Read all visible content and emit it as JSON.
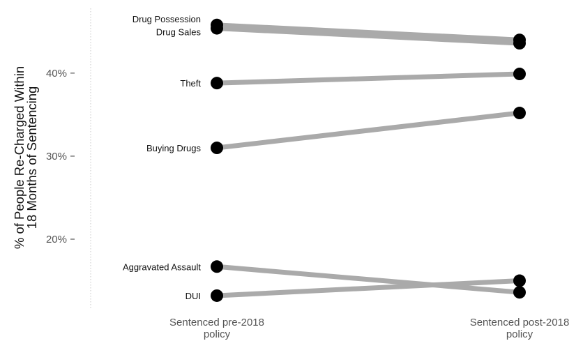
{
  "chart_data": {
    "type": "line",
    "title": "",
    "xlabel": "",
    "ylabel": [
      "% of People Re-Charged Within",
      "18 Months of Sentencing"
    ],
    "categories": [
      [
        "Sentenced pre-2018",
        "policy"
      ],
      [
        "Sentenced post-2018",
        "policy"
      ]
    ],
    "ylim": [
      11.6,
      47.8
    ],
    "yticks": [
      20,
      30,
      40
    ],
    "ytick_labels": [
      "20%",
      "30%",
      "40%"
    ],
    "grid": false,
    "legend": "none; series labelled at left endpoints",
    "line_color": "#aaaaaa",
    "point_color": "#000000",
    "series": [
      {
        "name": "Drug Possession",
        "values": [
          45.8,
          44.0
        ]
      },
      {
        "name": "Drug Sales",
        "values": [
          45.4,
          43.6
        ]
      },
      {
        "name": "Theft",
        "values": [
          38.8,
          39.9
        ]
      },
      {
        "name": "Buying Drugs",
        "values": [
          31.0,
          35.2
        ]
      },
      {
        "name": "Aggravated Assault",
        "values": [
          16.7,
          13.6
        ]
      },
      {
        "name": "DUI",
        "values": [
          13.2,
          15.0
        ]
      }
    ]
  }
}
